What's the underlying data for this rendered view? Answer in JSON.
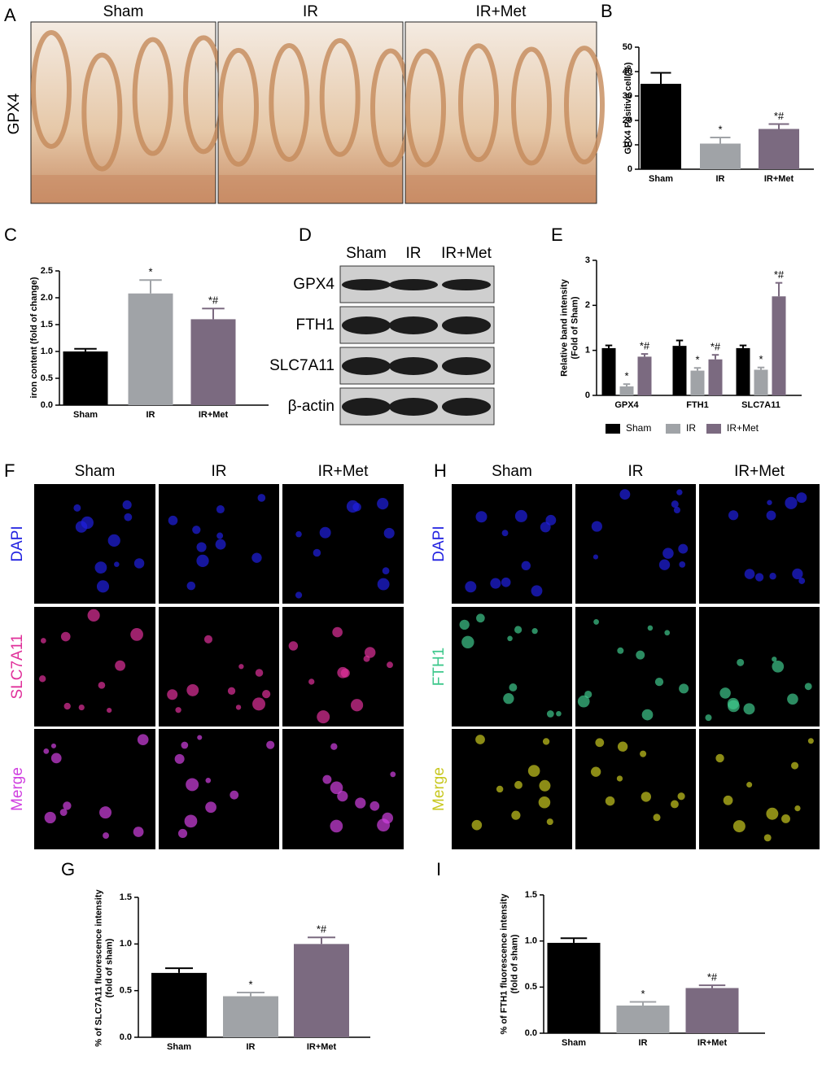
{
  "panel_labels": {
    "A": "A",
    "B": "B",
    "C": "C",
    "D": "D",
    "E": "E",
    "F": "F",
    "G": "G",
    "H": "H",
    "I": "I"
  },
  "histology": {
    "columns": [
      "Sham",
      "IR",
      "IR+Met"
    ],
    "row": "GPX4"
  },
  "western_blot": {
    "columns": [
      "Sham",
      "IR",
      "IR+Met"
    ],
    "rows": [
      "GPX4",
      "FTH1",
      "SLC7A11",
      "β-actin"
    ]
  },
  "fluorescence_slc7a11": {
    "columns": [
      "Sham",
      "IR",
      "IR+Met"
    ],
    "rows": [
      "DAPI",
      "SLC7A11",
      "Merge"
    ],
    "row_colors": [
      "#1f1fe0",
      "#e0309a",
      "#d040e0"
    ]
  },
  "fluorescence_fth1": {
    "columns": [
      "Sham",
      "IR",
      "IR+Met"
    ],
    "rows": [
      "DAPI",
      "FTH1",
      "Merge"
    ],
    "row_colors": [
      "#1f1fe0",
      "#3ec88c",
      "#c8c820"
    ]
  },
  "chart_data": [
    {
      "type": "bar",
      "ylabel": [
        "GPX4 Positive cell(%)"
      ],
      "categories": [
        "Sham",
        "IR",
        "IR+Met"
      ],
      "values": [
        35,
        10.5,
        16.5
      ],
      "errors": [
        4.5,
        2.5,
        2
      ],
      "annotations": [
        null,
        "*",
        "*#"
      ],
      "colors": [
        "#000000",
        "#a0a3a7",
        "#7b6a80"
      ],
      "ylim": [
        0,
        50
      ],
      "yticks": [
        0,
        10,
        20,
        30,
        40,
        50
      ]
    },
    {
      "type": "bar",
      "ylabel": [
        "iron content (fold of change)"
      ],
      "categories": [
        "Sham",
        "IR",
        "IR+Met"
      ],
      "values": [
        1.0,
        2.08,
        1.6
      ],
      "errors": [
        0.05,
        0.25,
        0.2
      ],
      "annotations": [
        null,
        "*",
        "*#"
      ],
      "colors": [
        "#000000",
        "#a0a3a7",
        "#7b6a80"
      ],
      "ylim": [
        0,
        2.5
      ],
      "yticks": [
        {
          "value": 0,
          "label": "0.0"
        },
        0.5,
        {
          "value": 1,
          "label": "1.0"
        },
        1.5,
        {
          "value": 2,
          "label": "2.0"
        },
        2.5
      ]
    },
    {
      "type": "grouped_bar",
      "ylabel": [
        "Relative band intensity",
        "(Fold of Sham)"
      ],
      "categories": [
        "GPX4",
        "FTH1",
        "SLC7A11"
      ],
      "series": [
        {
          "name": "Sham",
          "color": "#000000",
          "values": [
            1.05,
            1.1,
            1.05
          ],
          "errors": [
            0.06,
            0.12,
            0.06
          ],
          "annotations": [
            null,
            null,
            null
          ]
        },
        {
          "name": "IR",
          "color": "#a0a3a7",
          "values": [
            0.2,
            0.55,
            0.57
          ],
          "errors": [
            0.05,
            0.06,
            0.05
          ],
          "annotations": [
            "*",
            "*",
            "*"
          ]
        },
        {
          "name": "IR+Met",
          "color": "#7b6a80",
          "values": [
            0.86,
            0.8,
            2.2
          ],
          "errors": [
            0.06,
            0.1,
            0.3
          ],
          "annotations": [
            "*#",
            "*#",
            "*#"
          ]
        }
      ],
      "ylim": [
        0,
        3
      ],
      "yticks": [
        0,
        1,
        2,
        3
      ],
      "legend": "bottom"
    },
    {
      "type": "bar",
      "ylabel": [
        "% of SLC7A11 fluorescence intensity",
        "(fold of sham)"
      ],
      "categories": [
        "Sham",
        "IR",
        "IR+Met"
      ],
      "values": [
        0.69,
        0.44,
        1.0
      ],
      "errors": [
        0.05,
        0.04,
        0.07
      ],
      "annotations": [
        null,
        "*",
        "*#"
      ],
      "colors": [
        "#000000",
        "#a0a3a7",
        "#7b6a80"
      ],
      "ylim": [
        0,
        1.5
      ],
      "yticks": [
        {
          "value": 0,
          "label": "0.0"
        },
        0.5,
        {
          "value": 1,
          "label": "1.0"
        },
        1.5
      ]
    },
    {
      "type": "bar",
      "ylabel": [
        "% of FTH1 fluorescence intensity",
        "(fold of sham)"
      ],
      "categories": [
        "Sham",
        "IR",
        "IR+Met"
      ],
      "values": [
        0.98,
        0.3,
        0.49
      ],
      "errors": [
        0.05,
        0.04,
        0.03
      ],
      "annotations": [
        null,
        "*",
        "*#"
      ],
      "colors": [
        "#000000",
        "#a0a3a7",
        "#7b6a80"
      ],
      "ylim": [
        0,
        1.5
      ],
      "yticks": [
        {
          "value": 0,
          "label": "0.0"
        },
        0.5,
        {
          "value": 1,
          "label": "1.0"
        },
        1.5
      ]
    }
  ]
}
